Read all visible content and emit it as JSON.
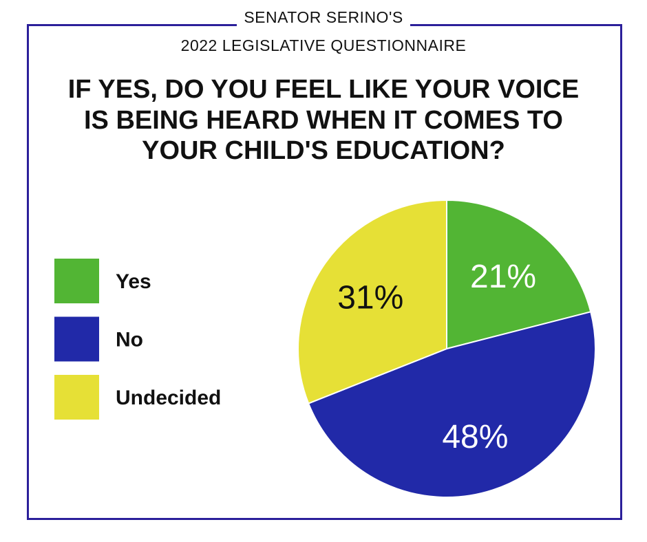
{
  "chart_data": {
    "type": "pie",
    "header": [
      "SENATOR SERINO'S",
      "2022 LEGISLATIVE QUESTIONNAIRE"
    ],
    "title": "IF YES, DO YOU FEEL LIKE YOUR VOICE IS BEING HEARD WHEN IT COMES TO YOUR CHILD'S EDUCATION?",
    "categories": [
      "Yes",
      "No",
      "Undecided"
    ],
    "values": [
      21,
      48,
      31
    ],
    "value_labels": [
      "21%",
      "48%",
      "31%"
    ],
    "colors": [
      "#52b534",
      "#2129a8",
      "#e6e036"
    ],
    "label_colors": [
      "#ffffff",
      "#ffffff",
      "#111111"
    ],
    "legend": "left"
  }
}
